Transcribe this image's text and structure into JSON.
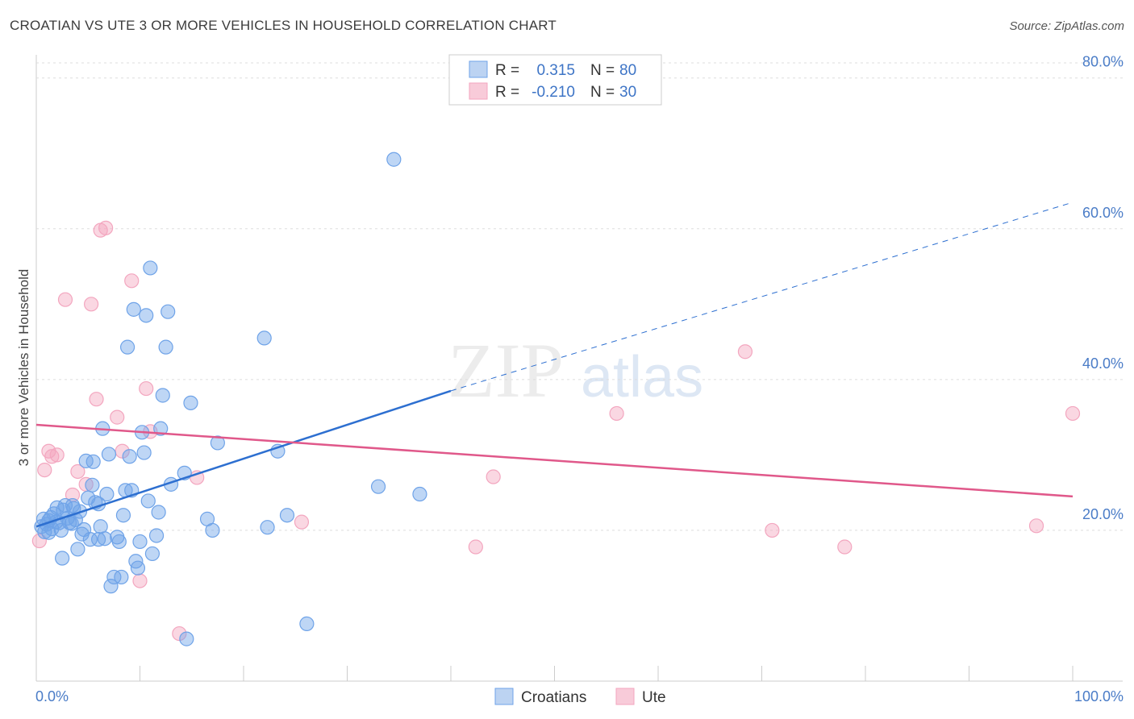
{
  "header": {
    "title": "CROATIAN VS UTE 3 OR MORE VEHICLES IN HOUSEHOLD CORRELATION CHART",
    "source": "Source: ZipAtlas.com"
  },
  "colors": {
    "blue": "#6fa3e8",
    "blue_line": "#2d6fd0",
    "pink": "#f3a6bf",
    "pink_line": "#e0588a",
    "grid": "#dddddd",
    "tick_text": "#4a7cc7"
  },
  "legend": {
    "r_label": "R =",
    "n_label": "N =",
    "rows": [
      {
        "series": "Croatians",
        "r": "0.315",
        "n": "80"
      },
      {
        "series": "Ute",
        "r": "-0.210",
        "n": "30"
      }
    ]
  },
  "watermark": {
    "zip": "ZIP",
    "atlas": "atlas"
  },
  "chart_data": {
    "type": "scatter",
    "title": "CROATIAN VS UTE 3 OR MORE VEHICLES IN HOUSEHOLD CORRELATION CHART",
    "xlabel": "",
    "ylabel": "3 or more Vehicles in Household",
    "xlim": [
      0,
      100
    ],
    "ylim": [
      0,
      82
    ],
    "x_tick_labels": [
      "0.0%",
      "100.0%"
    ],
    "y_ticks": [
      20,
      40,
      60,
      80
    ],
    "y_tick_labels": [
      "20.0%",
      "40.0%",
      "60.0%",
      "80.0%"
    ],
    "grid": true,
    "legend_position": "top-center",
    "series": [
      {
        "name": "Croatians",
        "r": 0.315,
        "n": 80,
        "trend": {
          "x0": 0,
          "y0": 20.5,
          "x1": 40,
          "y1": 38.5,
          "dashed_to": 100,
          "dashed_y": 63.5
        },
        "points": [
          [
            0.5,
            20.5
          ],
          [
            0.7,
            21.5
          ],
          [
            0.8,
            19.8
          ],
          [
            1.0,
            20.8
          ],
          [
            1.2,
            21.3
          ],
          [
            1.4,
            21.7
          ],
          [
            1.5,
            20.2
          ],
          [
            1.7,
            22.2
          ],
          [
            1.9,
            21.1
          ],
          [
            2.0,
            23.0
          ],
          [
            2.2,
            21.0
          ],
          [
            2.4,
            20.0
          ],
          [
            2.6,
            22.7
          ],
          [
            2.8,
            23.3
          ],
          [
            3.0,
            21.6
          ],
          [
            3.2,
            21.0
          ],
          [
            3.4,
            20.9
          ],
          [
            3.6,
            22.9
          ],
          [
            3.8,
            21.4
          ],
          [
            4.0,
            17.5
          ],
          [
            4.2,
            22.5
          ],
          [
            4.4,
            19.5
          ],
          [
            4.6,
            20.1
          ],
          [
            4.8,
            29.2
          ],
          [
            5.0,
            24.3
          ],
          [
            5.2,
            18.8
          ],
          [
            5.4,
            26.0
          ],
          [
            5.5,
            29.1
          ],
          [
            5.7,
            23.7
          ],
          [
            6.0,
            23.5
          ],
          [
            6.2,
            20.5
          ],
          [
            6.4,
            33.5
          ],
          [
            6.6,
            18.9
          ],
          [
            6.8,
            24.8
          ],
          [
            7.0,
            30.1
          ],
          [
            7.2,
            12.6
          ],
          [
            7.5,
            13.8
          ],
          [
            7.8,
            19.1
          ],
          [
            8.0,
            18.5
          ],
          [
            8.2,
            13.8
          ],
          [
            8.4,
            22.0
          ],
          [
            8.6,
            25.3
          ],
          [
            8.8,
            44.3
          ],
          [
            9.0,
            29.8
          ],
          [
            9.2,
            25.3
          ],
          [
            9.4,
            49.3
          ],
          [
            9.6,
            15.9
          ],
          [
            9.8,
            15.0
          ],
          [
            10.0,
            18.5
          ],
          [
            10.2,
            33.0
          ],
          [
            10.4,
            30.3
          ],
          [
            10.6,
            48.5
          ],
          [
            10.8,
            23.9
          ],
          [
            11.0,
            54.8
          ],
          [
            11.2,
            16.9
          ],
          [
            11.6,
            19.3
          ],
          [
            11.8,
            22.4
          ],
          [
            12.2,
            37.9
          ],
          [
            12.5,
            44.3
          ],
          [
            12.7,
            49.0
          ],
          [
            13.0,
            26.1
          ],
          [
            14.3,
            27.6
          ],
          [
            14.5,
            5.6
          ],
          [
            14.9,
            36.9
          ],
          [
            16.5,
            21.5
          ],
          [
            17.0,
            20.0
          ],
          [
            17.5,
            31.6
          ],
          [
            22.0,
            45.5
          ],
          [
            22.3,
            20.4
          ],
          [
            23.3,
            30.5
          ],
          [
            24.2,
            22.0
          ],
          [
            26.1,
            7.6
          ],
          [
            33.0,
            25.8
          ],
          [
            34.5,
            69.2
          ],
          [
            37.0,
            24.8
          ],
          [
            12.0,
            33.5
          ],
          [
            2.5,
            16.3
          ],
          [
            3.5,
            23.3
          ],
          [
            6.0,
            18.8
          ],
          [
            1.2,
            19.7
          ]
        ]
      },
      {
        "name": "Ute",
        "r": -0.21,
        "n": 30,
        "trend": {
          "x0": 0,
          "y0": 34.0,
          "x1": 100,
          "y1": 24.5
        },
        "points": [
          [
            0.3,
            18.6
          ],
          [
            0.8,
            28.0
          ],
          [
            1.2,
            30.5
          ],
          [
            1.5,
            29.8
          ],
          [
            2.0,
            30.0
          ],
          [
            2.8,
            50.6
          ],
          [
            3.5,
            24.7
          ],
          [
            4.0,
            27.8
          ],
          [
            4.8,
            26.1
          ],
          [
            5.3,
            50.0
          ],
          [
            5.8,
            37.4
          ],
          [
            6.2,
            59.8
          ],
          [
            6.7,
            60.1
          ],
          [
            7.8,
            35.0
          ],
          [
            8.3,
            30.5
          ],
          [
            9.2,
            53.1
          ],
          [
            10.0,
            13.3
          ],
          [
            10.6,
            38.8
          ],
          [
            11.0,
            33.1
          ],
          [
            13.8,
            6.3
          ],
          [
            15.5,
            27.0
          ],
          [
            25.6,
            21.1
          ],
          [
            42.4,
            17.8
          ],
          [
            44.1,
            27.1
          ],
          [
            56.0,
            35.5
          ],
          [
            68.4,
            43.7
          ],
          [
            71.0,
            20.0
          ],
          [
            78.0,
            17.8
          ],
          [
            96.5,
            20.6
          ],
          [
            100.0,
            35.5
          ]
        ]
      }
    ]
  },
  "bottom_legend": [
    {
      "label": "Croatians"
    },
    {
      "label": "Ute"
    }
  ]
}
